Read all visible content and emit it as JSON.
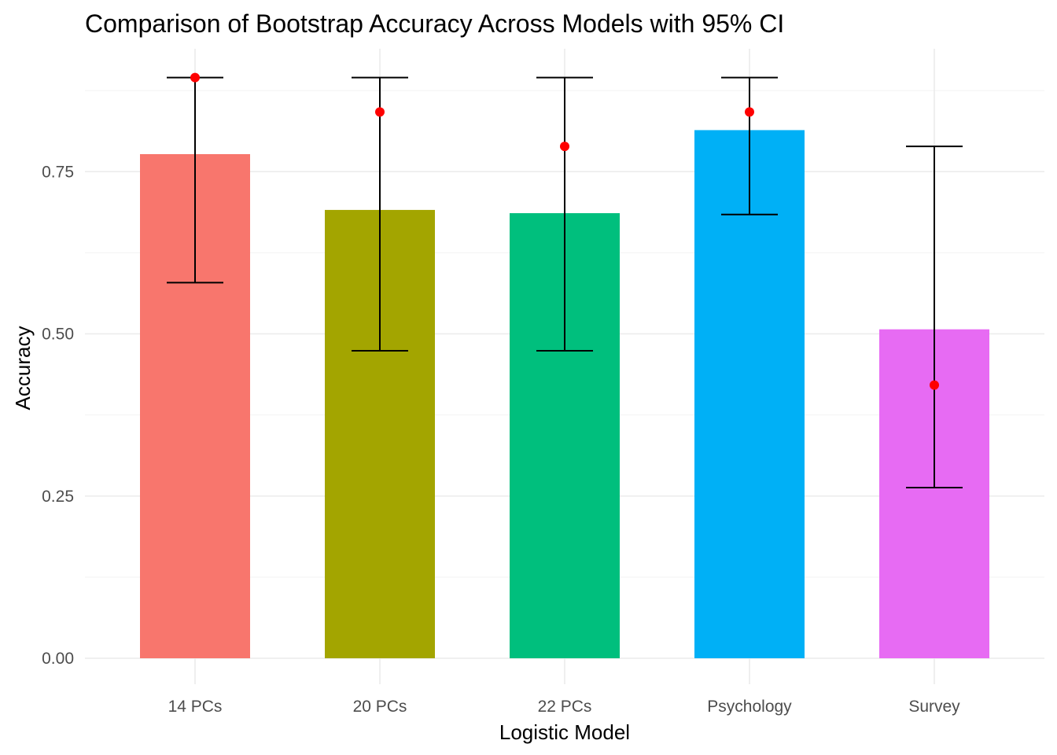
{
  "chart_data": {
    "type": "bar",
    "title": "Comparison of Bootstrap Accuracy Across Models with 95% CI",
    "xlabel": "Logistic Model",
    "ylabel": "Accuracy",
    "categories": [
      "14 PCs",
      "20 PCs",
      "22 PCs",
      "Psychology",
      "Survey"
    ],
    "values": [
      0.777,
      0.691,
      0.686,
      0.814,
      0.507
    ],
    "ci_lower": [
      0.579,
      0.474,
      0.474,
      0.684,
      0.263
    ],
    "ci_upper": [
      0.895,
      0.895,
      0.895,
      0.895,
      0.789
    ],
    "point_estimates": [
      0.895,
      0.842,
      0.789,
      0.842,
      0.421
    ],
    "bar_colors": [
      "#F8766D",
      "#A3A500",
      "#00BF7D",
      "#00B0F6",
      "#E76BF3"
    ],
    "point_color": "#FF0000",
    "errorbar_color": "#000000",
    "ylim": [
      0,
      0.895
    ],
    "yticks": [
      0.0,
      0.25,
      0.5,
      0.75
    ],
    "ytick_labels": [
      "0.00",
      "0.25",
      "0.50",
      "0.75"
    ],
    "grid": true,
    "legend": "none"
  }
}
